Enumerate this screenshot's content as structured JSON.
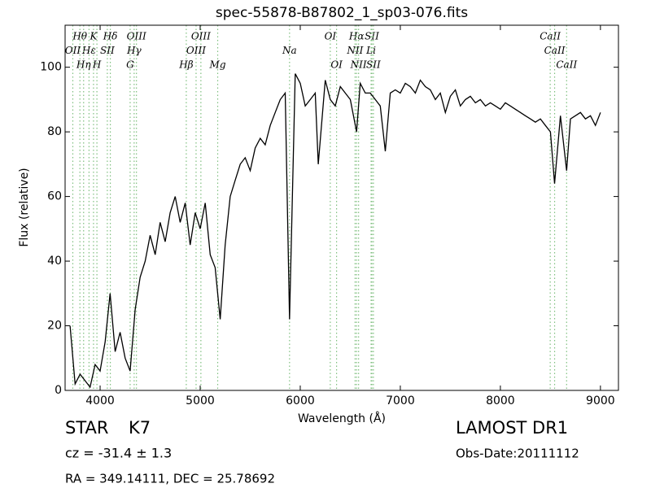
{
  "chart_data": {
    "type": "line",
    "title": "spec-55878-B87802_1_sp03-076.fits",
    "x_label": "Wavelength (Å)",
    "y_label": "Flux (relative)",
    "xlim": [
      3650,
      9180
    ],
    "ylim": [
      0,
      113
    ],
    "xticks": [
      4000,
      5000,
      6000,
      7000,
      8000,
      9000
    ],
    "yticks": [
      0,
      20,
      40,
      60,
      80,
      100
    ],
    "color": "#000000",
    "line_color": "#7fbf7f",
    "x": [
      3700,
      3750,
      3800,
      3850,
      3900,
      3950,
      4000,
      4050,
      4100,
      4150,
      4200,
      4250,
      4300,
      4350,
      4400,
      4450,
      4500,
      4550,
      4600,
      4650,
      4700,
      4750,
      4800,
      4850,
      4900,
      4950,
      5000,
      5050,
      5100,
      5150,
      5200,
      5250,
      5300,
      5350,
      5400,
      5450,
      5500,
      5550,
      5600,
      5650,
      5700,
      5750,
      5800,
      5850,
      5893,
      5950,
      6000,
      6050,
      6100,
      6150,
      6180,
      6250,
      6300,
      6350,
      6400,
      6450,
      6500,
      6563,
      6600,
      6650,
      6700,
      6750,
      6800,
      6850,
      6900,
      6950,
      7000,
      7050,
      7100,
      7150,
      7200,
      7250,
      7300,
      7350,
      7400,
      7450,
      7500,
      7550,
      7600,
      7650,
      7700,
      7750,
      7800,
      7850,
      7900,
      7950,
      8000,
      8050,
      8100,
      8150,
      8200,
      8250,
      8300,
      8350,
      8400,
      8450,
      8500,
      8542,
      8600,
      8662,
      8700,
      8750,
      8800,
      8850,
      8900,
      8950,
      9000
    ],
    "values": [
      20,
      2,
      5,
      3,
      1,
      8,
      6,
      15,
      30,
      12,
      18,
      10,
      6,
      25,
      35,
      40,
      48,
      42,
      52,
      46,
      55,
      60,
      52,
      58,
      45,
      55,
      50,
      58,
      42,
      38,
      22,
      45,
      60,
      65,
      70,
      72,
      68,
      75,
      78,
      76,
      82,
      86,
      90,
      92,
      22,
      98,
      95,
      88,
      90,
      92,
      70,
      96,
      90,
      88,
      94,
      92,
      90,
      80,
      95,
      92,
      92,
      90,
      88,
      74,
      92,
      93,
      92,
      95,
      94,
      92,
      96,
      94,
      93,
      90,
      92,
      86,
      91,
      93,
      88,
      90,
      91,
      89,
      90,
      88,
      89,
      88,
      87,
      89,
      88,
      87,
      86,
      85,
      84,
      83,
      84,
      82,
      80,
      64,
      85,
      68,
      84,
      85,
      86,
      84,
      85,
      82,
      86
    ],
    "spectral_lines": [
      [
        {
          "label": "Hθ",
          "x": 3798
        },
        {
          "label": "K",
          "x": 3934
        },
        {
          "label": "Hδ",
          "x": 4102
        },
        {
          "label": "OIII",
          "x": 4363
        },
        {
          "label": "OIII",
          "x": 5007
        },
        {
          "label": "OI",
          "x": 6300
        },
        {
          "label": "Hα",
          "x": 6563
        },
        {
          "label": "SII",
          "x": 6716
        },
        {
          "label": "CaII",
          "x": 8498
        }
      ],
      [
        {
          "label": "OII",
          "x": 3727
        },
        {
          "label": "Hε",
          "x": 3889
        },
        {
          "label": "SII",
          "x": 4072
        },
        {
          "label": "Hγ",
          "x": 4340
        },
        {
          "label": "OIII",
          "x": 4959
        },
        {
          "label": "Na",
          "x": 5893
        },
        {
          "label": "NII",
          "x": 6548
        },
        {
          "label": "Li",
          "x": 6708
        },
        {
          "label": "CaII",
          "x": 8542
        }
      ],
      [
        {
          "label": "Hη",
          "x": 3835
        },
        {
          "label": "H",
          "x": 3968
        },
        {
          "label": "G",
          "x": 4300
        },
        {
          "label": "Hβ",
          "x": 4861
        },
        {
          "label": "Mg",
          "x": 5175
        },
        {
          "label": "OI",
          "x": 6363
        },
        {
          "label": "NII",
          "x": 6583
        },
        {
          "label": "SII",
          "x": 6731
        },
        {
          "label": "CaII",
          "x": 8662
        }
      ]
    ]
  },
  "footer": {
    "object": "STAR",
    "subclass": "K7",
    "cz": "cz = -31.4 ± 1.3",
    "coords": "RA = 349.14111, DEC = 25.78692",
    "survey": "LAMOST DR1",
    "obs_date": "Obs-Date:20111112"
  }
}
